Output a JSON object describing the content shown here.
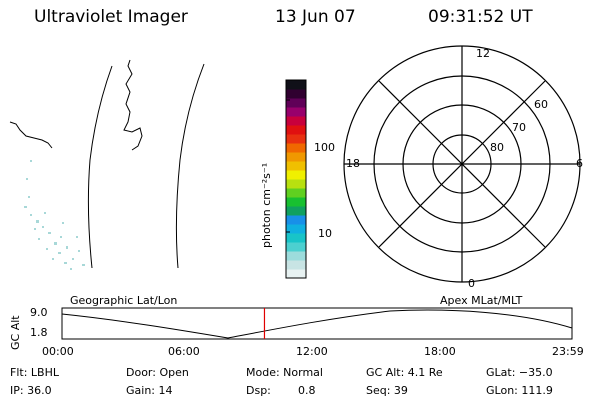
{
  "header": {
    "instrument": "Ultraviolet Imager",
    "date": "13 Jun 07",
    "time": "09:31:52 UT"
  },
  "colorbar": {
    "unit_label": "photon cm⁻²s⁻¹",
    "ticks": [
      "100",
      "10"
    ],
    "colors": [
      "#e8f2f2",
      "#c8e4e4",
      "#9cdcdc",
      "#4cd0d0",
      "#18c4c8",
      "#10b0e0",
      "#1890e8",
      "#10a060",
      "#18c030",
      "#60d020",
      "#b8e010",
      "#f0f000",
      "#f0c000",
      "#f09800",
      "#f06800",
      "#e83010",
      "#e01010",
      "#c8003c",
      "#98006c",
      "#600058",
      "#300030",
      "#101018"
    ]
  },
  "polar": {
    "mlt_labels": {
      "top": "12",
      "left": "18",
      "right": "6",
      "bottom": "0"
    },
    "lat_labels": [
      "60",
      "70",
      "80"
    ]
  },
  "timeline": {
    "left_label": "Geographic Lat/Lon",
    "right_label": "Apex MLat/MLT",
    "yaxis_label": "GC Alt",
    "y_max": "9.0",
    "y_min": "1.8",
    "x_ticks": [
      "00:00",
      "06:00",
      "12:00",
      "18:00",
      "23:59"
    ],
    "current_time_fraction": 0.397
  },
  "footer": {
    "flt": "Flt: LBHL",
    "door": "Door: Open",
    "mode": "Mode: Normal",
    "gc_alt": "GC Alt: 4.1 Re",
    "glat": "GLat: −35.0",
    "ip": "IP: 36.0",
    "gain": "Gain: 14",
    "dsp_label": "Dsp:",
    "dsp_value": "0.8",
    "seq": "Seq: 39",
    "glon": "GLon: 111.9"
  }
}
